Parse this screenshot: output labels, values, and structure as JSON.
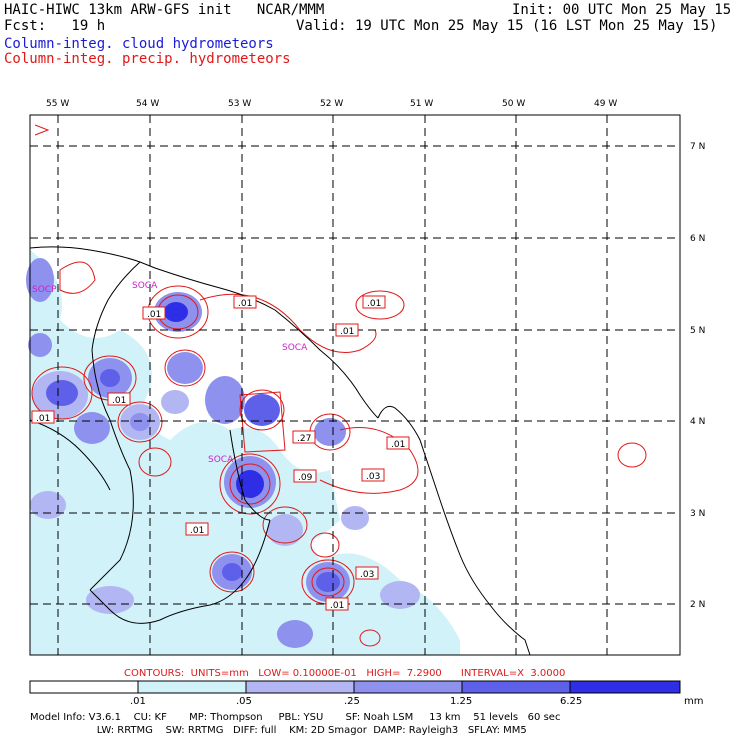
{
  "header": {
    "title_left": "HAIC-HIWC 13km ARW-GFS init   NCAR/MMM",
    "init": "Init: 00 UTC Mon 25 May 15",
    "fcst": "Fcst:   19 h",
    "valid": "Valid: 19 UTC Mon 25 May 15 (16 LST Mon 25 May 15)",
    "field_cloud": "Column-integ. cloud hydrometeors",
    "field_precip": "Column-integ. precip. hydrometeors"
  },
  "colors": {
    "cloud_text": "#1a1adc",
    "precip_text": "#e01818",
    "coast": "#000000",
    "fill_levels": [
      "#ffffff",
      "#d2f2fa",
      "#b2b6f2",
      "#8e91ee",
      "#5f60ea",
      "#2e2ee6",
      "#1010e0"
    ]
  },
  "map": {
    "lon_labels": [
      "55 W",
      "54 W",
      "53 W",
      "52 W",
      "51 W",
      "50 W",
      "49 W"
    ],
    "lat_labels": [
      "7 N",
      "6 N",
      "5 N",
      "4 N",
      "3 N",
      "2 N"
    ],
    "station_labels": [
      "SOCP",
      "SOCA",
      "SOCA",
      "SOCA"
    ],
    "contour_labels": [
      ".01",
      ".01",
      ".01",
      ".01",
      ".01",
      ".01",
      ".27",
      ".01",
      ".09",
      ".03",
      ".01",
      ".03",
      ".01"
    ]
  },
  "contours": {
    "info": "CONTOURS:  UNITS=mm   LOW= 0.10000E-01   HIGH=  7.2900      INTERVAL=X  3.0000"
  },
  "colorbar": {
    "labels": [
      ".01",
      ".05",
      ".25",
      "1.25",
      "6.25"
    ],
    "unit": "mm"
  },
  "footer": {
    "line1": "Model Info: V3.6.1    CU: KF       MP: Thompson     PBL: YSU       SF: Noah LSM     13 km    51 levels   60 sec",
    "line2": "                     LW: RRTMG    SW: RRTMG   DIFF: full    KM: 2D Smagor  DAMP: Rayleigh3   SFLAY: MM5"
  }
}
